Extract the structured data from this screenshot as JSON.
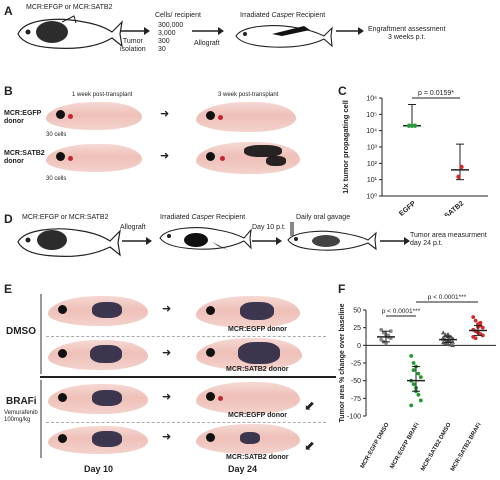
{
  "panels": {
    "a": {
      "letter": "A",
      "donor_label": "MCR:EFGP or MCR:SATB2",
      "step1": "Tumor\nisolation",
      "cells_header": "Cells/ recipient",
      "cell_counts": [
        "300,000",
        "3,000",
        "300",
        "30"
      ],
      "step2": "Allograft",
      "recipient_label": "Irradiated Casper Recipient",
      "recipient_italic": "Casper",
      "outcome": "Engraftment assessment\n3 weeks p.t."
    },
    "b": {
      "letter": "B",
      "col1": "1 week post-transplant",
      "col2": "3 week post-transplant",
      "row1_label": "MCR:EGFP\ndonor",
      "row2_label": "MCR:SATB2\ndonor",
      "cells_note_1": "30 cells",
      "cells_note_2": "30 cells"
    },
    "c": {
      "letter": "C",
      "p_value": "p = 0.0159*"
    },
    "d": {
      "letter": "D",
      "donor_label": "MCR:EFGP or MCR:SATB2",
      "step1": "Allograft",
      "recipient_label": "Irradiated Casper Recipient",
      "step2": "Day 10 p.t.",
      "gavage_label": "Daily oral gavage",
      "outcome": "Tumor area measurment\nday 24 p.t."
    },
    "e": {
      "letter": "E",
      "group1": "DMSO",
      "group2": "BRAFi",
      "group2_drug": "Vemurafenib\n100mg/kg",
      "donor_efgp": "MCR:EGFP donor",
      "donor_satb2": "MCR:SATB2 donor",
      "day_start": "Day 10",
      "day_end": "Day 24"
    },
    "f": {
      "letter": "F",
      "p1": "p < 0.0001***",
      "p2": "p < 0.0001***"
    }
  },
  "chart_data": [
    {
      "type": "scatter",
      "panel": "C",
      "ylabel": "1/x tumor propagating cell",
      "yscale": "log",
      "ylim": [
        1,
        1000000
      ],
      "yticks": [
        "10⁶",
        "10⁵",
        "10⁴",
        "10³",
        "10²",
        "10¹",
        "10⁰"
      ],
      "categories": [
        "EGFP",
        "SATB2"
      ],
      "series": [
        {
          "category": "EGFP",
          "color": "#2e9a3e",
          "points": [
            20000,
            20000,
            20000
          ],
          "mean": 20000,
          "upper": 400000,
          "lower": 20000
        },
        {
          "category": "SATB2",
          "color": "#d02a2a",
          "points": [
            15,
            60
          ],
          "mean": 40,
          "upper": 1500,
          "lower": 10
        }
      ]
    },
    {
      "type": "scatter",
      "panel": "F",
      "ylabel": "Tumor area % change over baseline",
      "ylim": [
        -100,
        50
      ],
      "yticks": [
        50,
        25,
        0,
        -25,
        -50,
        -75,
        -100
      ],
      "categories": [
        "MCR:EGFP DMSO",
        "MCR:EGFP BRAFi",
        "MCR:SATB2 DMSO",
        "MCR:SATB2 BRAFi"
      ],
      "series": [
        {
          "category": "MCR:EGFP DMSO",
          "color": "#888888",
          "marker": "circle",
          "points": [
            22,
            18,
            15,
            12,
            10,
            8,
            5,
            3,
            14,
            20
          ],
          "mean": 12,
          "upper": 20,
          "lower": 5
        },
        {
          "category": "MCR:EGFP BRAFi",
          "color": "#1f9a2e",
          "marker": "circle",
          "points": [
            -15,
            -25,
            -30,
            -40,
            -45,
            -50,
            -55,
            -60,
            -70,
            -78,
            -85,
            -35,
            -65
          ],
          "mean": -50,
          "upper": -30,
          "lower": -65
        },
        {
          "category": "MCR:SATB2 DMSO",
          "color": "#555555",
          "marker": "triangle",
          "points": [
            18,
            15,
            13,
            12,
            10,
            9,
            8,
            7,
            6,
            5,
            4,
            3,
            2,
            1,
            0,
            11,
            14,
            16
          ],
          "mean": 8,
          "upper": 13,
          "lower": 4
        },
        {
          "category": "MCR:SATB2 BRAFi",
          "color": "#d02a2a",
          "marker": "circle",
          "points": [
            40,
            35,
            30,
            28,
            25,
            22,
            20,
            18,
            16,
            14,
            12,
            10,
            26,
            32
          ],
          "mean": 21,
          "upper": 28,
          "lower": 14
        }
      ]
    }
  ]
}
